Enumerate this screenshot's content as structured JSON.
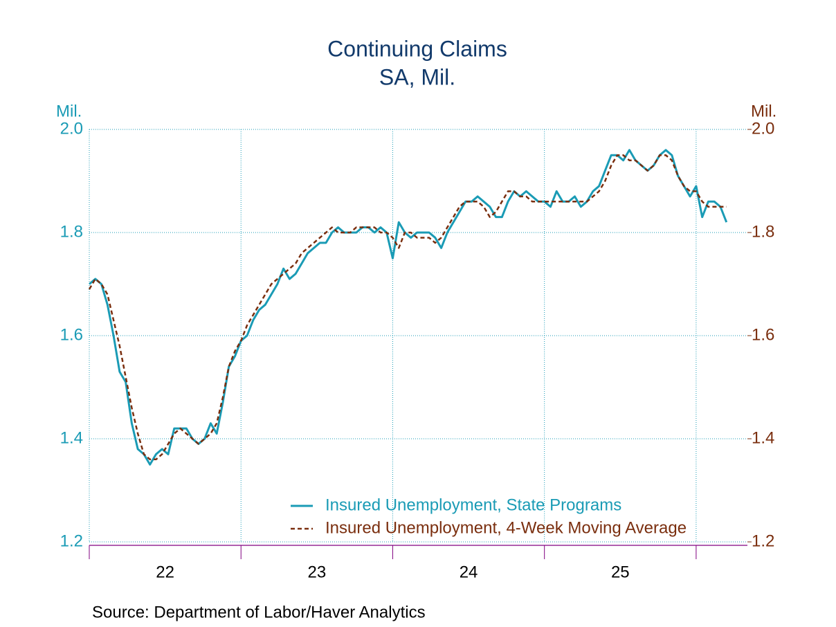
{
  "chart_data": {
    "type": "line",
    "title": "Continuing Claims",
    "subtitle": "SA, Mil.",
    "y_label": "Mil.",
    "y2_label": "Mil.",
    "source": "Source:  Department of Labor/Haver Analytics",
    "xlim": [
      2022,
      2026.338
    ],
    "xticks": [
      2022,
      2023,
      2024,
      2025,
      2026
    ],
    "x_period_labels": [
      {
        "value": 2022.5,
        "label": "22"
      },
      {
        "value": 2023.5,
        "label": "23"
      },
      {
        "value": 2024.5,
        "label": "24"
      },
      {
        "value": 2025.5,
        "label": "25"
      }
    ],
    "ylim": [
      1.2,
      2.0
    ],
    "yticks": [
      {
        "value": 1.2,
        "label": "1.2"
      },
      1.4,
      1.6,
      1.8,
      {
        "value": 2,
        "label": "2.0"
      }
    ],
    "y2lim": [
      1.2,
      2.0
    ],
    "y2ticks": [
      {
        "value": 1.2,
        "label": "1.2"
      },
      1.4,
      1.6,
      1.8,
      {
        "value": 2,
        "label": "2.0"
      }
    ],
    "grid": true,
    "legend": "bottom-right",
    "x": [
      2022,
      2022.04,
      2022.08,
      2022.12,
      2022.16,
      2022.2,
      2022.24,
      2022.28,
      2022.32,
      2022.36,
      2022.4,
      2022.44,
      2022.48,
      2022.52,
      2022.56,
      2022.6,
      2022.64,
      2022.68,
      2022.72,
      2022.76,
      2022.8,
      2022.84,
      2022.88,
      2022.92,
      2022.96,
      2023,
      2023.04,
      2023.08,
      2023.12,
      2023.16,
      2023.2,
      2023.24,
      2023.28,
      2023.32,
      2023.36,
      2023.4,
      2023.44,
      2023.48,
      2023.52,
      2023.56,
      2023.6,
      2023.64,
      2023.68,
      2023.72,
      2023.76,
      2023.8,
      2023.84,
      2023.88,
      2023.92,
      2023.96,
      2024,
      2024.04,
      2024.08,
      2024.12,
      2024.16,
      2024.2,
      2024.24,
      2024.28,
      2024.32,
      2024.36,
      2024.4,
      2024.44,
      2024.48,
      2024.52,
      2024.56,
      2024.6,
      2024.64,
      2024.68,
      2024.72,
      2024.76,
      2024.8,
      2024.84,
      2024.88,
      2024.92,
      2024.96,
      2025,
      2025.04,
      2025.08,
      2025.12,
      2025.16,
      2025.2,
      2025.24,
      2025.28,
      2025.32,
      2025.36,
      2025.4,
      2025.44,
      2025.48,
      2025.52,
      2025.56,
      2025.6,
      2025.64,
      2025.68,
      2025.72,
      2025.76,
      2025.8,
      2025.84,
      2025.88,
      2025.92,
      2025.96,
      2026,
      2026.04,
      2026.08,
      2026.12,
      2026.16,
      2026.2
    ],
    "series": [
      {
        "name": "Insured Unemployment, State Programs",
        "color": "#1a9bb5",
        "dash": false,
        "values": [
          1.7,
          1.71,
          1.7,
          1.66,
          1.6,
          1.53,
          1.51,
          1.43,
          1.38,
          1.37,
          1.35,
          1.37,
          1.38,
          1.37,
          1.42,
          1.42,
          1.42,
          1.4,
          1.39,
          1.4,
          1.43,
          1.41,
          1.47,
          1.54,
          1.56,
          1.59,
          1.6,
          1.63,
          1.65,
          1.66,
          1.68,
          1.7,
          1.73,
          1.71,
          1.72,
          1.74,
          1.76,
          1.77,
          1.78,
          1.78,
          1.8,
          1.81,
          1.8,
          1.8,
          1.8,
          1.81,
          1.81,
          1.8,
          1.81,
          1.8,
          1.75,
          1.82,
          1.8,
          1.79,
          1.8,
          1.8,
          1.8,
          1.79,
          1.77,
          1.8,
          1.82,
          1.84,
          1.86,
          1.86,
          1.87,
          1.86,
          1.85,
          1.83,
          1.83,
          1.86,
          1.88,
          1.87,
          1.88,
          1.87,
          1.86,
          1.86,
          1.85,
          1.88,
          1.86,
          1.86,
          1.87,
          1.85,
          1.86,
          1.88,
          1.89,
          1.92,
          1.95,
          1.95,
          1.94,
          1.96,
          1.94,
          1.93,
          1.92,
          1.93,
          1.95,
          1.96,
          1.95,
          1.91,
          1.89,
          1.87,
          1.89,
          1.83,
          1.86,
          1.86,
          1.85,
          1.82
        ]
      },
      {
        "name": "Insured Unemployment, 4-Week Moving Average",
        "color": "#7a2e0e",
        "dash": true,
        "axis": "y2",
        "values": [
          1.69,
          1.71,
          1.7,
          1.68,
          1.63,
          1.58,
          1.52,
          1.46,
          1.41,
          1.37,
          1.36,
          1.36,
          1.37,
          1.39,
          1.41,
          1.42,
          1.41,
          1.4,
          1.39,
          1.4,
          1.41,
          1.43,
          1.48,
          1.54,
          1.57,
          1.59,
          1.62,
          1.64,
          1.66,
          1.68,
          1.7,
          1.71,
          1.72,
          1.73,
          1.74,
          1.76,
          1.77,
          1.78,
          1.79,
          1.8,
          1.81,
          1.8,
          1.8,
          1.8,
          1.81,
          1.81,
          1.81,
          1.81,
          1.8,
          1.8,
          1.79,
          1.77,
          1.8,
          1.8,
          1.79,
          1.79,
          1.79,
          1.78,
          1.79,
          1.81,
          1.83,
          1.85,
          1.86,
          1.86,
          1.86,
          1.85,
          1.83,
          1.84,
          1.86,
          1.88,
          1.88,
          1.87,
          1.87,
          1.86,
          1.86,
          1.86,
          1.86,
          1.86,
          1.86,
          1.86,
          1.86,
          1.86,
          1.86,
          1.87,
          1.88,
          1.9,
          1.93,
          1.95,
          1.95,
          1.94,
          1.94,
          1.93,
          1.92,
          1.93,
          1.95,
          1.95,
          1.94,
          1.91,
          1.89,
          1.88,
          1.88,
          1.86,
          1.85,
          1.85,
          1.85,
          1.85
        ]
      }
    ]
  }
}
